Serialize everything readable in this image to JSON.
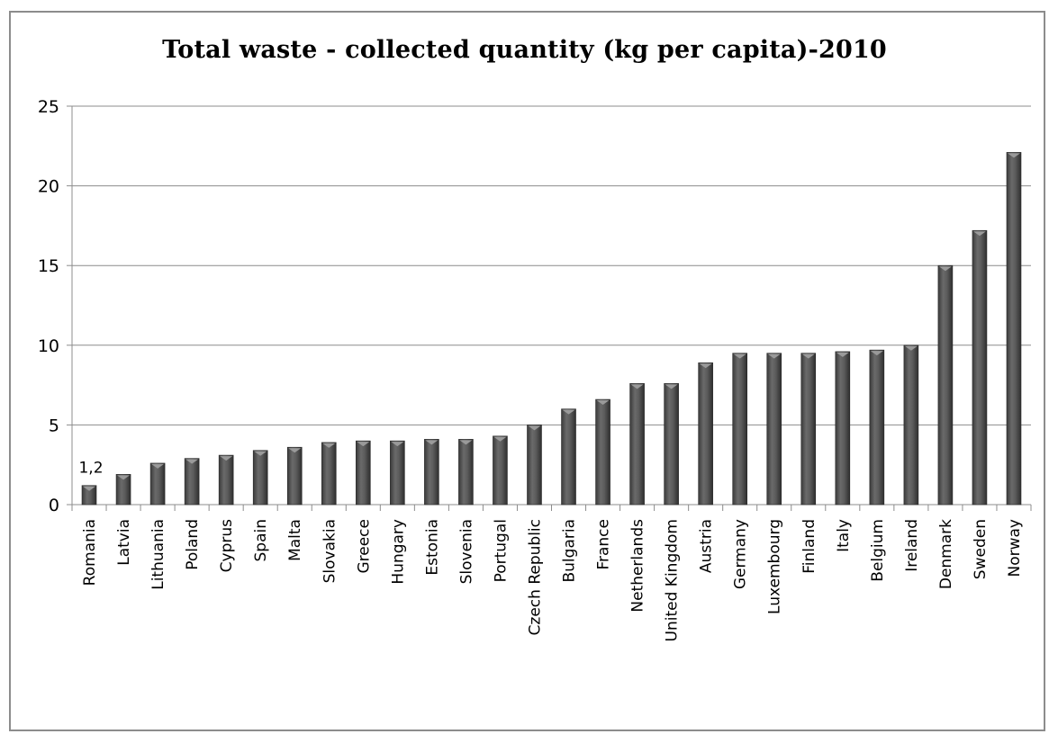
{
  "chart_data": {
    "type": "bar",
    "title": "Total waste - collected quantity (kg per capita)-2010",
    "xlabel": "",
    "ylabel": "",
    "ylim": [
      0,
      25
    ],
    "yticks": [
      "0",
      "5",
      "10",
      "15",
      "20",
      "25"
    ],
    "grid": true,
    "legend": "none",
    "bar_color": "#595959",
    "categories": [
      "Romania",
      "Latvia",
      "Lithuania",
      "Poland",
      "Cyprus",
      "Spain",
      "Malta",
      "Slovakia",
      "Greece",
      "Hungary",
      "Estonia",
      "Slovenia",
      "Portugal",
      "Czech Republic",
      "Bulgaria",
      "France",
      "Netherlands",
      "United Kingdom",
      "Austria",
      "Germany",
      "Luxembourg",
      "Finland",
      "Italy",
      "Belgium",
      "Ireland",
      "Denmark",
      "Sweden",
      "Norway"
    ],
    "values": [
      1.2,
      1.9,
      2.6,
      2.9,
      3.1,
      3.4,
      3.6,
      3.9,
      4.0,
      4.0,
      4.1,
      4.1,
      4.3,
      5.0,
      6.0,
      6.6,
      7.6,
      7.6,
      8.9,
      9.5,
      9.5,
      9.5,
      9.6,
      9.7,
      10.0,
      15.0,
      17.2,
      22.1
    ],
    "data_labels": [
      {
        "category": "Romania",
        "text": "1,2"
      }
    ]
  }
}
